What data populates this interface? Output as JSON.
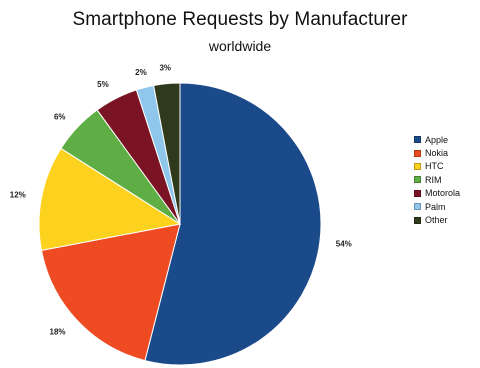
{
  "chart_data": {
    "type": "pie",
    "title": "Smartphone Requests by Manufacturer",
    "subtitle": "worldwide",
    "legend_position": "right",
    "slices": [
      {
        "name": "Apple",
        "value": 54,
        "label": "54%",
        "color": "#1b4a8b"
      },
      {
        "name": "Nokia",
        "value": 18,
        "label": "18%",
        "color": "#ee4b23"
      },
      {
        "name": "HTC",
        "value": 12,
        "label": "12%",
        "color": "#fcd21e"
      },
      {
        "name": "RIM",
        "value": 6,
        "label": "6%",
        "color": "#5fae45"
      },
      {
        "name": "Motorola",
        "value": 5,
        "label": "5%",
        "color": "#7a1424"
      },
      {
        "name": "Palm",
        "value": 2,
        "label": "2%",
        "color": "#8fc7ec"
      },
      {
        "name": "Other",
        "value": 3,
        "label": "3%",
        "color": "#2f3a1c"
      }
    ]
  }
}
